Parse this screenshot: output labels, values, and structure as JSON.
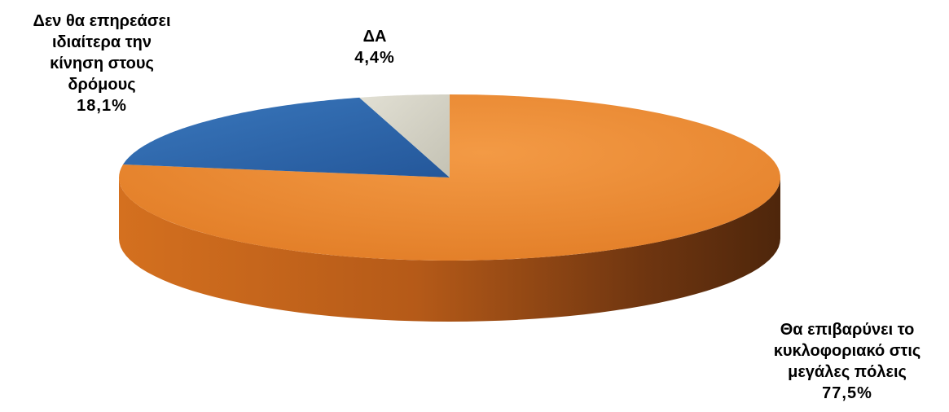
{
  "chart_data": {
    "type": "pie",
    "slices": [
      {
        "label": "Θα επιβαρύνει το\nκυκλοφοριακό στις\nμεγάλες πόλεις",
        "value": 77.5,
        "display": "77,5%",
        "color": "#e8832a",
        "side_color": "#8a4410"
      },
      {
        "label": "Δεν θα επηρεάσει\nιδιαίτερα την\nκίνηση στους\nδρόμους",
        "value": 18.1,
        "display": "18,1%",
        "color": "#2d65a8",
        "side_color": "#1b3f6c"
      },
      {
        "label": "ΔΑ",
        "value": 4.4,
        "display": "4,4%",
        "color": "#d2d0c2",
        "side_color": "#8f8d80"
      }
    ]
  }
}
